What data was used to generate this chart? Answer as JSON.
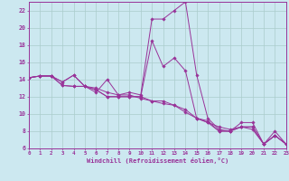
{
  "xlabel": "Windchill (Refroidissement éolien,°C)",
  "bg_color": "#cce8f0",
  "grid_color": "#aacccc",
  "line_color": "#993399",
  "xmin": 0,
  "xmax": 23,
  "ymin": 6,
  "ymax": 23,
  "yticks": [
    6,
    8,
    10,
    12,
    14,
    16,
    18,
    20,
    22
  ],
  "series": [
    [
      0,
      14.2,
      1,
      14.4,
      2,
      14.4,
      3,
      13.7,
      4,
      14.5,
      5,
      13.2,
      6,
      12.5,
      7,
      14.0,
      8,
      12.2,
      9,
      12.2,
      10,
      11.8,
      11,
      11.5,
      12,
      11.5,
      13,
      11.0,
      14,
      10.2,
      15,
      9.5,
      16,
      9.0,
      17,
      8.5,
      18,
      8.2,
      19,
      8.5,
      20,
      8.2,
      21,
      6.5,
      22,
      7.5,
      23,
      6.5
    ],
    [
      0,
      14.2,
      1,
      14.4,
      2,
      14.4,
      3,
      13.7,
      4,
      14.5,
      5,
      13.2,
      6,
      13.0,
      7,
      12.5,
      8,
      12.2,
      9,
      12.5,
      10,
      12.2,
      11,
      21.0,
      12,
      21.0,
      13,
      22.0,
      14,
      23.0,
      15,
      14.5,
      16,
      9.5,
      17,
      8.2,
      18,
      8.0,
      19,
      9.0,
      20,
      9.0,
      21,
      6.5,
      22,
      8.0,
      23,
      6.5
    ],
    [
      0,
      14.2,
      1,
      14.4,
      2,
      14.4,
      3,
      13.3,
      4,
      13.2,
      5,
      13.2,
      6,
      12.8,
      7,
      12.0,
      8,
      12.0,
      9,
      12.0,
      10,
      12.0,
      11,
      11.5,
      12,
      11.2,
      13,
      11.0,
      14,
      10.5,
      15,
      9.5,
      16,
      9.0,
      17,
      8.0,
      18,
      8.0,
      19,
      8.5,
      20,
      8.5,
      21,
      6.5,
      22,
      7.5,
      23,
      6.5
    ],
    [
      0,
      14.2,
      1,
      14.4,
      2,
      14.4,
      3,
      13.3,
      4,
      13.2,
      5,
      13.2,
      6,
      12.8,
      7,
      12.0,
      8,
      12.0,
      9,
      12.0,
      10,
      12.0,
      11,
      18.5,
      12,
      15.5,
      13,
      16.5,
      14,
      15.0,
      15,
      9.5,
      16,
      9.2,
      17,
      8.0,
      18,
      8.0,
      19,
      8.5,
      20,
      8.5,
      21,
      6.5,
      22,
      7.5,
      23,
      6.5
    ]
  ]
}
